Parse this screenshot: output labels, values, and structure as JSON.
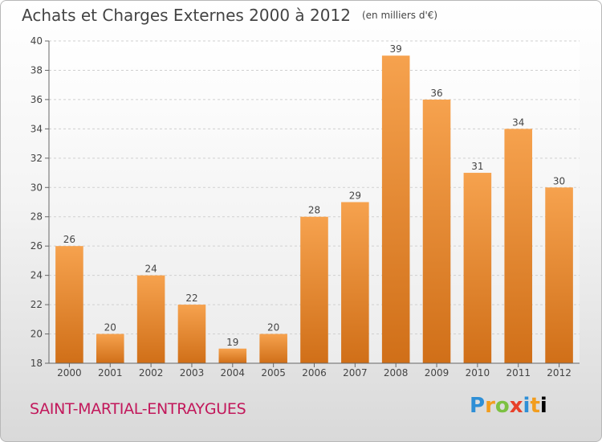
{
  "title": "Achats et Charges Externes 2000 à 2012",
  "unit": "(en milliers d'€)",
  "location": "SAINT-MARTIAL-ENTRAYGUES",
  "brand": "Proxiti",
  "colors": {
    "bar_top": "#f6a24e",
    "bar_bottom": "#d06f18",
    "location_text": "#c2185b"
  },
  "chart_data": {
    "type": "bar",
    "categories": [
      "2000",
      "2001",
      "2002",
      "2003",
      "2004",
      "2005",
      "2006",
      "2007",
      "2008",
      "2009",
      "2010",
      "2011",
      "2012"
    ],
    "values": [
      26,
      20,
      24,
      22,
      19,
      20,
      28,
      29,
      39,
      36,
      31,
      34,
      30
    ],
    "title": "Achats et Charges Externes 2000 à 2012",
    "xlabel": "",
    "ylabel": "",
    "ylim": [
      18,
      40
    ],
    "yticks": [
      18,
      20,
      22,
      24,
      26,
      28,
      30,
      32,
      34,
      36,
      38,
      40
    ],
    "grid": true
  }
}
